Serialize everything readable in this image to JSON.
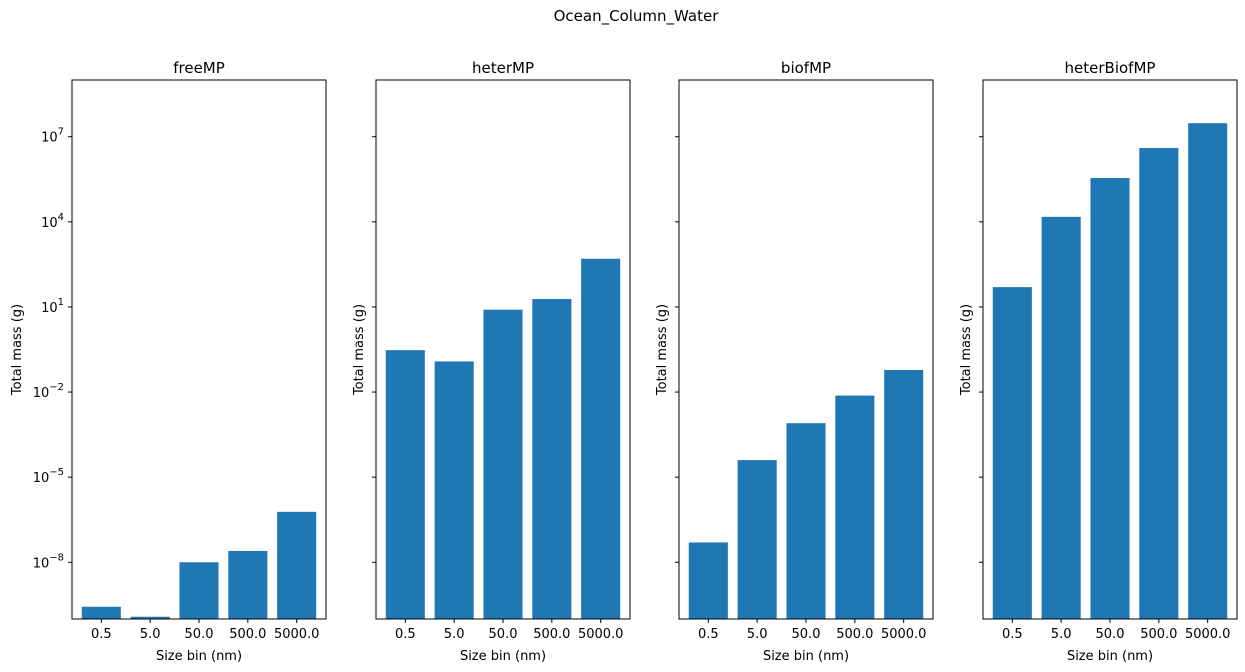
{
  "figure": {
    "suptitle": "Ocean_Column_Water"
  },
  "chart_data": [
    {
      "type": "bar",
      "title": "freeMP",
      "xlabel": "Size bin (nm)",
      "ylabel": "Total mass (g)",
      "yscale": "log",
      "ylim": [
        1e-10,
        1000000000.0
      ],
      "categories": [
        "0.5",
        "5.0",
        "50.0",
        "500.0",
        "5000.0"
      ],
      "values": [
        2.7e-10,
        1.2e-10,
        1e-08,
        2.5e-08,
        6e-07
      ],
      "color": "#1f77b4"
    },
    {
      "type": "bar",
      "title": "heterMP",
      "xlabel": "Size bin (nm)",
      "ylabel": "Total mass (g)",
      "yscale": "log",
      "ylim": [
        1e-10,
        1000000000.0
      ],
      "categories": [
        "0.5",
        "5.0",
        "50.0",
        "500.0",
        "5000.0"
      ],
      "values": [
        0.3,
        0.12,
        8,
        19,
        500
      ],
      "color": "#1f77b4"
    },
    {
      "type": "bar",
      "title": "biofMP",
      "xlabel": "Size bin (nm)",
      "ylabel": "Total mass (g)",
      "yscale": "log",
      "ylim": [
        1e-10,
        1000000000.0
      ],
      "categories": [
        "0.5",
        "5.0",
        "50.0",
        "500.0",
        "5000.0"
      ],
      "values": [
        5e-08,
        4e-05,
        0.0008,
        0.0075,
        0.06
      ],
      "color": "#1f77b4"
    },
    {
      "type": "bar",
      "title": "heterBiofMP",
      "xlabel": "Size bin (nm)",
      "ylabel": "Total mass (g)",
      "yscale": "log",
      "ylim": [
        1e-10,
        1000000000.0
      ],
      "categories": [
        "0.5",
        "5.0",
        "50.0",
        "500.0",
        "5000.0"
      ],
      "values": [
        50,
        15000,
        350000,
        4000000,
        30000000
      ],
      "color": "#1f77b4"
    }
  ],
  "y_ticks": [
    {
      "exp": -8,
      "label": "-8"
    },
    {
      "exp": -5,
      "label": "-5"
    },
    {
      "exp": -2,
      "label": "-2"
    },
    {
      "exp": 1,
      "label": "1"
    },
    {
      "exp": 4,
      "label": "4"
    },
    {
      "exp": 7,
      "label": "7"
    }
  ],
  "y_tick_base": "10"
}
